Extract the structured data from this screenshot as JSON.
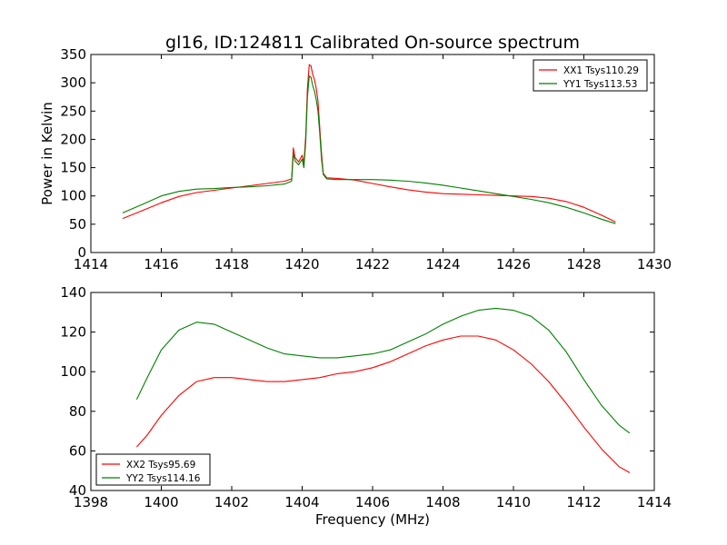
{
  "figure": {
    "title": "gl16, ID:124811 Calibrated On-source spectrum"
  },
  "chart_data": [
    {
      "type": "line",
      "title": "gl16, ID:124811 Calibrated On-source spectrum",
      "xlabel": "",
      "ylabel": "Power in Kelvin",
      "xlim": [
        1414,
        1430
      ],
      "ylim": [
        0,
        350
      ],
      "xticks": [
        "1414",
        "1416",
        "1418",
        "1420",
        "1422",
        "1424",
        "1426",
        "1428",
        "1430"
      ],
      "yticks": [
        "0",
        "50",
        "100",
        "150",
        "200",
        "250",
        "300",
        "350"
      ],
      "grid": false,
      "legend_position": "top-right",
      "series": [
        {
          "name": "XX1 Tsys110.29",
          "color": "#ff0000",
          "x": [
            1414.9,
            1415.5,
            1416.0,
            1416.5,
            1417.0,
            1417.5,
            1418.0,
            1418.5,
            1419.0,
            1419.5,
            1419.7,
            1419.75,
            1419.8,
            1419.9,
            1420.0,
            1420.05,
            1420.1,
            1420.15,
            1420.2,
            1420.25,
            1420.3,
            1420.35,
            1420.4,
            1420.45,
            1420.5,
            1420.55,
            1420.6,
            1420.7,
            1421.0,
            1421.5,
            1422.0,
            1422.5,
            1423.0,
            1423.5,
            1424.0,
            1424.5,
            1425.0,
            1425.5,
            1426.0,
            1426.5,
            1427.0,
            1427.5,
            1428.0,
            1428.5,
            1428.9
          ],
          "y": [
            60,
            75,
            88,
            99,
            106,
            110,
            114,
            118,
            122,
            126,
            130,
            185,
            168,
            160,
            172,
            158,
            205,
            290,
            332,
            330,
            315,
            305,
            290,
            268,
            220,
            175,
            140,
            132,
            131,
            128,
            122,
            116,
            111,
            107,
            104,
            103,
            102,
            101,
            100,
            99,
            96,
            90,
            80,
            66,
            54
          ]
        },
        {
          "name": "YY1 Tsys113.53",
          "color": "#008000",
          "x": [
            1414.9,
            1415.5,
            1416.0,
            1416.5,
            1417.0,
            1417.5,
            1418.0,
            1418.5,
            1419.0,
            1419.5,
            1419.7,
            1419.75,
            1419.8,
            1419.9,
            1420.0,
            1420.05,
            1420.1,
            1420.15,
            1420.2,
            1420.25,
            1420.3,
            1420.35,
            1420.4,
            1420.45,
            1420.5,
            1420.55,
            1420.6,
            1420.7,
            1421.0,
            1421.5,
            1422.0,
            1422.5,
            1423.0,
            1423.5,
            1424.0,
            1424.5,
            1425.0,
            1425.5,
            1426.0,
            1426.5,
            1427.0,
            1427.5,
            1428.0,
            1428.5,
            1428.9
          ],
          "y": [
            70,
            86,
            100,
            108,
            112,
            113,
            115,
            116,
            118,
            121,
            126,
            175,
            162,
            155,
            165,
            150,
            195,
            275,
            312,
            310,
            295,
            285,
            270,
            250,
            210,
            165,
            138,
            130,
            129,
            129,
            129,
            128,
            126,
            123,
            119,
            114,
            109,
            104,
            99,
            94,
            88,
            80,
            70,
            59,
            51
          ]
        }
      ]
    },
    {
      "type": "line",
      "title": "",
      "xlabel": "Frequency (MHz)",
      "ylabel": "",
      "xlim": [
        1398,
        1414
      ],
      "ylim": [
        40,
        140
      ],
      "xticks": [
        "1398",
        "1400",
        "1402",
        "1404",
        "1406",
        "1408",
        "1410",
        "1412",
        "1414"
      ],
      "yticks": [
        "40",
        "60",
        "80",
        "100",
        "120",
        "140"
      ],
      "grid": false,
      "legend_position": "bottom-left",
      "series": [
        {
          "name": "XX2 Tsys95.69",
          "color": "#ff0000",
          "x": [
            1399.3,
            1399.6,
            1400.0,
            1400.5,
            1401.0,
            1401.5,
            1402.0,
            1402.5,
            1403.0,
            1403.5,
            1404.0,
            1404.5,
            1405.0,
            1405.5,
            1406.0,
            1406.5,
            1407.0,
            1407.5,
            1408.0,
            1408.5,
            1409.0,
            1409.5,
            1410.0,
            1410.5,
            1411.0,
            1411.5,
            1412.0,
            1412.5,
            1413.0,
            1413.3
          ],
          "y": [
            62,
            68,
            78,
            88,
            95,
            97,
            97,
            96,
            95,
            95,
            96,
            97,
            99,
            100,
            102,
            105,
            109,
            113,
            116,
            118,
            118,
            116,
            111,
            104,
            95,
            84,
            72,
            61,
            52,
            49
          ]
        },
        {
          "name": "YY2 Tsys114.16",
          "color": "#008000",
          "x": [
            1399.3,
            1399.6,
            1400.0,
            1400.5,
            1401.0,
            1401.5,
            1402.0,
            1402.5,
            1403.0,
            1403.5,
            1404.0,
            1404.5,
            1405.0,
            1405.5,
            1406.0,
            1406.5,
            1407.0,
            1407.5,
            1408.0,
            1408.5,
            1409.0,
            1409.5,
            1410.0,
            1410.5,
            1411.0,
            1411.5,
            1412.0,
            1412.5,
            1413.0,
            1413.3
          ],
          "y": [
            86,
            97,
            111,
            121,
            125,
            124,
            120,
            116,
            112,
            109,
            108,
            107,
            107,
            108,
            109,
            111,
            115,
            119,
            124,
            128,
            131,
            132,
            131,
            128,
            121,
            110,
            96,
            83,
            73,
            69
          ]
        }
      ]
    }
  ]
}
